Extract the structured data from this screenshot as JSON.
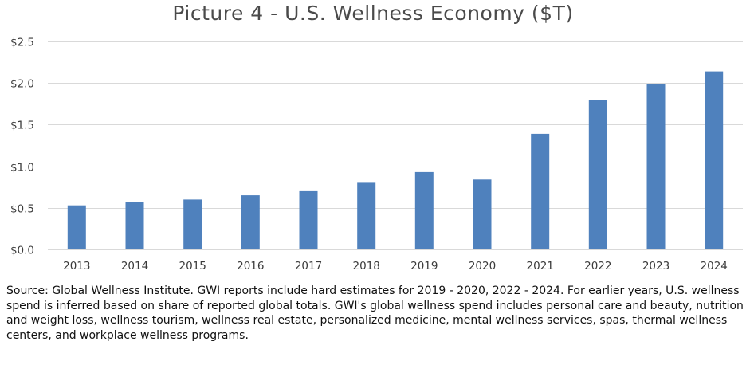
{
  "chart_data": {
    "type": "bar",
    "title": "Picture 4 - U.S. Wellness Economy ($T)",
    "xlabel": "",
    "ylabel": "",
    "categories": [
      "2013",
      "2014",
      "2015",
      "2016",
      "2017",
      "2018",
      "2019",
      "2020",
      "2021",
      "2022",
      "2023",
      "2024"
    ],
    "values": [
      0.53,
      0.57,
      0.6,
      0.65,
      0.7,
      0.81,
      0.93,
      0.84,
      1.39,
      1.8,
      1.99,
      2.14
    ],
    "ylim": [
      0,
      2.5
    ],
    "yticks": [
      0,
      0.5,
      1.0,
      1.5,
      2.0,
      2.5
    ],
    "ytick_labels": [
      "$0.0",
      "$0.5",
      "$1.0",
      "$1.5",
      "$2.0",
      "$2.5"
    ],
    "grid": true,
    "bar_color": "#4f81bd",
    "grid_color": "#d9d9d9"
  },
  "note": "Source: Global Wellness Institute.  GWI reports include hard estimates for 2019 - 2020, 2022 - 2024.  For earlier years, U.S. wellness spend is inferred based on share of reported global totals.  GWI's global wellness spend includes personal care and beauty, nutrition and weight loss, wellness tourism, wellness real estate, personalized medicine, mental wellness services, spas, thermal wellness centers, and workplace wellness programs."
}
